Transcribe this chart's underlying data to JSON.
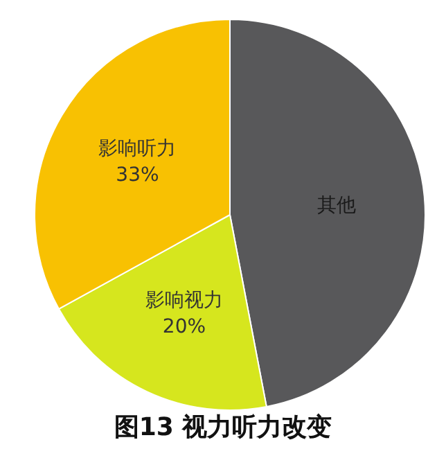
{
  "chart_data": {
    "type": "pie",
    "title": "图13 视力听力改变",
    "categories": [
      "其他",
      "影响视力",
      "影响听力"
    ],
    "values": [
      47,
      20,
      33
    ],
    "colors": [
      "#58585a",
      "#d6e61e",
      "#f8c102"
    ],
    "value_labels": [
      null,
      "20%",
      "33%"
    ]
  }
}
